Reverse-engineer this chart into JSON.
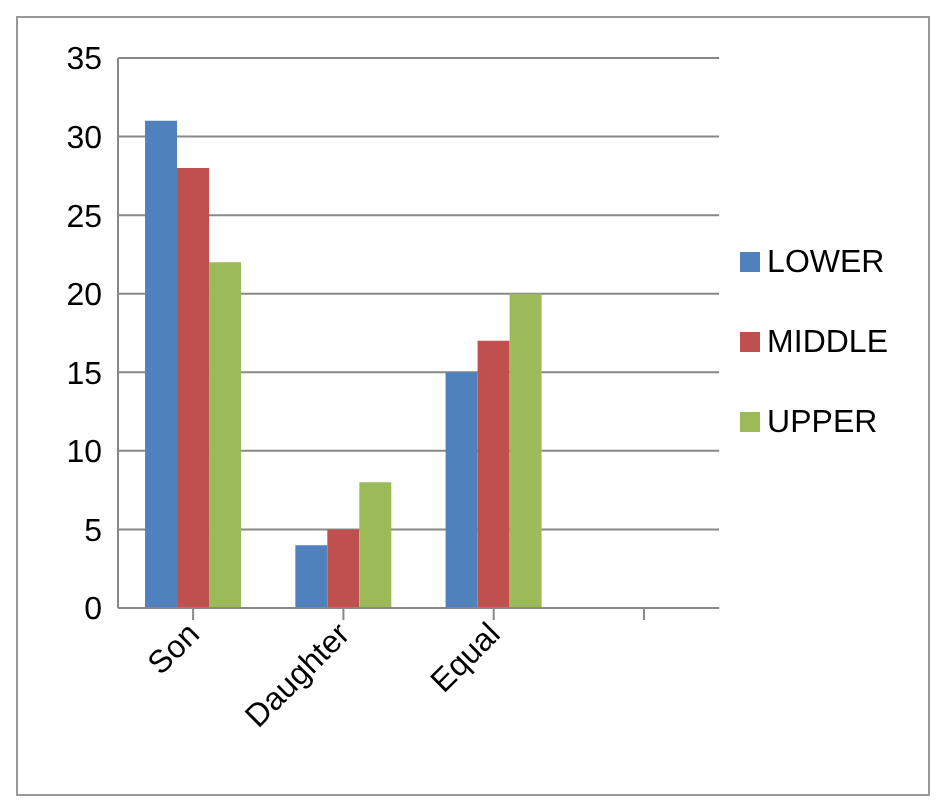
{
  "chart_data": {
    "type": "bar",
    "categories": [
      "Son",
      "Daughter",
      "Equal",
      null
    ],
    "series": [
      {
        "name": "LOWER",
        "color": "#4f81bd",
        "values": [
          31,
          4,
          15,
          null
        ]
      },
      {
        "name": "MIDDLE",
        "color": "#c0504d",
        "values": [
          28,
          5,
          17,
          null
        ]
      },
      {
        "name": "UPPER",
        "color": "#9bbb59",
        "values": [
          22,
          8,
          20,
          null
        ]
      }
    ],
    "ylim": [
      0,
      35
    ],
    "yticks": [
      0,
      5,
      10,
      15,
      20,
      25,
      30,
      35
    ],
    "grid": "y",
    "legend": "right"
  }
}
